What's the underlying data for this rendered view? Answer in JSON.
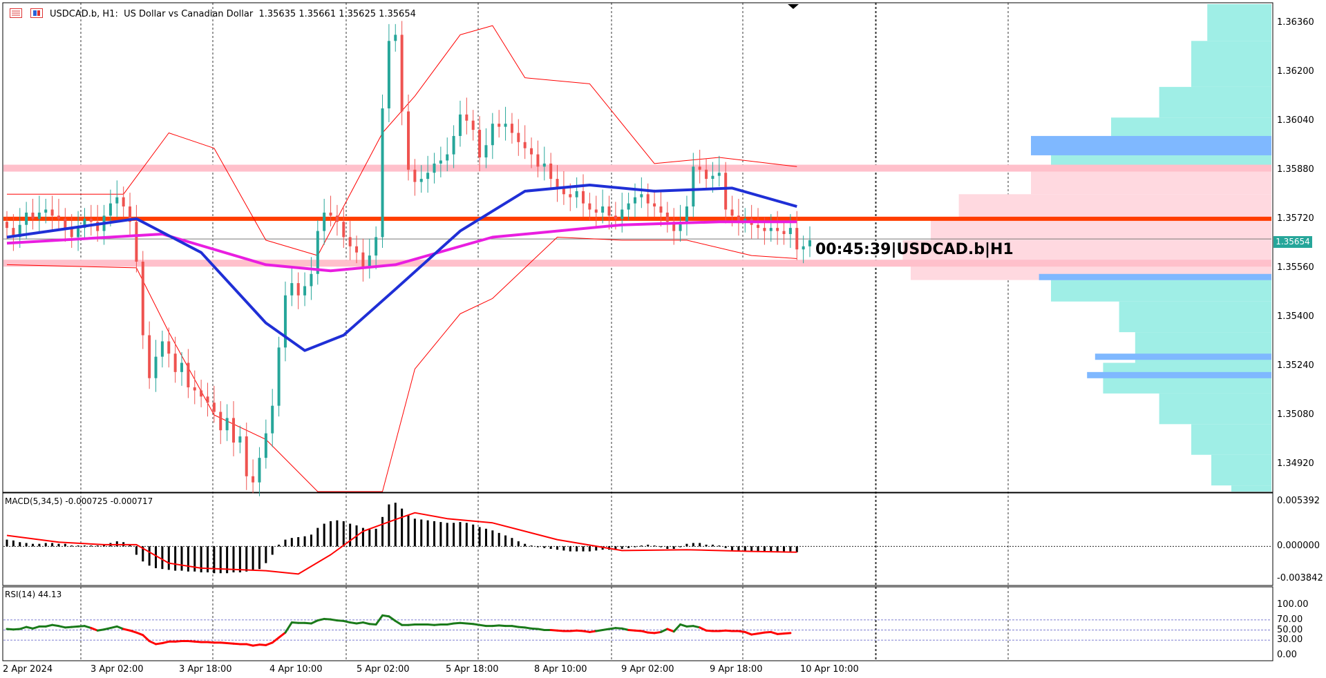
{
  "header": {
    "symbol_line": "USDCAD.b, H1:  US Dollar vs Canadian Dollar  1.35635 1.35661 1.35625 1.35654"
  },
  "countdown_label": "00:45:39|USDCAD.b|H1",
  "current_price": "1.35654",
  "colors": {
    "bull": "#26a69a",
    "bear": "#ef5350",
    "ma_fast": "#1f2fd6",
    "ma_slow": "#e91ee0",
    "resistance": "#ff3d00",
    "zone": "#ffc0cb",
    "bollinger": "#ff0000",
    "volume_profile": "#9feee6",
    "volume_profile_value_area": "#ffd9e0",
    "volume_profile_high": "#7fb8ff"
  },
  "chart_data": [
    {
      "type": "candlestick",
      "title": "USDCAD.b, H1",
      "ylim": [
        1.3483,
        1.3642
      ],
      "y_ticks": [
        "1.36360",
        "1.36200",
        "1.36040",
        "1.35880",
        "1.35720",
        "1.35560",
        "1.35400",
        "1.35240",
        "1.35080",
        "1.34920"
      ],
      "x_ticks": [
        "2 Apr 2024",
        "3 Apr 02:00",
        "3 Apr 18:00",
        "4 Apr 10:00",
        "5 Apr 02:00",
        "5 Apr 18:00",
        "8 Apr 10:00",
        "9 Apr 02:00",
        "9 Apr 18:00",
        "10 Apr 10:00"
      ],
      "close_path": [
        1.3569,
        1.3566,
        1.357,
        1.3574,
        1.3572,
        1.3574,
        1.3575,
        1.3573,
        1.3572,
        1.3569,
        1.3566,
        1.3569,
        1.3572,
        1.3571,
        1.3568,
        1.3573,
        1.3577,
        1.3579,
        1.3576,
        1.3571,
        1.3558,
        1.3534,
        1.352,
        1.3527,
        1.3532,
        1.3528,
        1.3522,
        1.3525,
        1.3517,
        1.3516,
        1.3514,
        1.3512,
        1.3509,
        1.3503,
        1.3507,
        1.3499,
        1.3501,
        1.3488,
        1.3486,
        1.3494,
        1.3502,
        1.3511,
        1.353,
        1.3547,
        1.3551,
        1.3547,
        1.355,
        1.3554,
        1.3568,
        1.3574,
        1.3573,
        1.3571,
        1.3566,
        1.3563,
        1.3561,
        1.3556,
        1.356,
        1.3566,
        1.3608,
        1.363,
        1.3632,
        1.3607,
        1.3588,
        1.3584,
        1.3585,
        1.3587,
        1.359,
        1.3591,
        1.3593,
        1.3599,
        1.3606,
        1.3604,
        1.3601,
        1.3592,
        1.3596,
        1.3603,
        1.3602,
        1.3603,
        1.36,
        1.3597,
        1.3595,
        1.3593,
        1.3589,
        1.359,
        1.3585,
        1.3582,
        1.358,
        1.3579,
        1.3581,
        1.3577,
        1.3575,
        1.3574,
        1.3576,
        1.3573,
        1.3572,
        1.3575,
        1.3577,
        1.3579,
        1.358,
        1.3577,
        1.3576,
        1.3574,
        1.3571,
        1.3568,
        1.3571,
        1.3576,
        1.3589,
        1.3588,
        1.3585,
        1.3586,
        1.3587,
        1.3575,
        1.3573,
        1.3571,
        1.3572,
        1.357,
        1.3569,
        1.3568,
        1.3569,
        1.3568,
        1.3567,
        1.3569,
        1.3562,
        1.3563,
        1.3565
      ],
      "resistance_level": 1.3572,
      "zones": [
        1.35885,
        1.35575
      ],
      "last_price_line": 1.35654,
      "ma_fast": [
        [
          0,
          1.3566
        ],
        [
          20,
          1.3572
        ],
        [
          30,
          1.3561
        ],
        [
          40,
          1.3538
        ],
        [
          46,
          1.3529
        ],
        [
          52,
          1.3534
        ],
        [
          60,
          1.3549
        ],
        [
          70,
          1.3568
        ],
        [
          80,
          1.3581
        ],
        [
          90,
          1.3583
        ],
        [
          100,
          1.3581
        ],
        [
          112,
          1.3582
        ],
        [
          122,
          1.3576
        ]
      ],
      "ma_slow": [
        [
          0,
          1.3564
        ],
        [
          24,
          1.3567
        ],
        [
          40,
          1.3557
        ],
        [
          50,
          1.3555
        ],
        [
          60,
          1.3557
        ],
        [
          75,
          1.3566
        ],
        [
          95,
          1.357
        ],
        [
          110,
          1.3571
        ],
        [
          122,
          1.3571
        ]
      ],
      "bollinger_upper": [
        [
          0,
          1.358
        ],
        [
          18,
          1.358
        ],
        [
          25,
          1.36
        ],
        [
          32,
          1.3595
        ],
        [
          40,
          1.3565
        ],
        [
          48,
          1.356
        ],
        [
          58,
          1.36
        ],
        [
          63,
          1.3612
        ],
        [
          70,
          1.3632
        ],
        [
          75,
          1.3635
        ],
        [
          80,
          1.3618
        ],
        [
          90,
          1.3616
        ],
        [
          100,
          1.359
        ],
        [
          110,
          1.3592
        ],
        [
          122,
          1.3589
        ]
      ],
      "bollinger_lower": [
        [
          0,
          1.3557
        ],
        [
          20,
          1.3556
        ],
        [
          25,
          1.3535
        ],
        [
          32,
          1.3508
        ],
        [
          40,
          1.35
        ],
        [
          48,
          1.3483
        ],
        [
          58,
          1.3483
        ],
        [
          63,
          1.3523
        ],
        [
          70,
          1.3541
        ],
        [
          75,
          1.3546
        ],
        [
          85,
          1.3566
        ],
        [
          95,
          1.3565
        ],
        [
          105,
          1.3565
        ],
        [
          115,
          1.356
        ],
        [
          122,
          1.3559
        ]
      ],
      "volume_profile": [
        [
          1.3642,
          0.16
        ],
        [
          1.363,
          0.2
        ],
        [
          1.3615,
          0.28
        ],
        [
          1.3605,
          0.4
        ],
        [
          1.3597,
          0.55
        ],
        [
          1.3588,
          0.6
        ],
        [
          1.358,
          0.78
        ],
        [
          1.3572,
          0.85
        ],
        [
          1.3565,
          0.92
        ],
        [
          1.3558,
          0.9
        ],
        [
          1.3552,
          0.55
        ],
        [
          1.3545,
          0.38
        ],
        [
          1.3535,
          0.34
        ],
        [
          1.3525,
          0.42
        ],
        [
          1.3515,
          0.28
        ],
        [
          1.3505,
          0.2
        ],
        [
          1.3495,
          0.15
        ],
        [
          1.3485,
          0.1
        ]
      ]
    },
    {
      "type": "bar",
      "title": "MACD(5,34,5) -0.000725 -0.000717",
      "y_ticks": [
        "0.005392",
        "0.000000",
        "-0.003842"
      ],
      "ylim": [
        -0.0045,
        0.0062
      ],
      "histogram": [
        0.0008,
        0.0007,
        0.0005,
        0.0004,
        0.0003,
        0.0003,
        0.0004,
        0.0004,
        0.0003,
        0.0003,
        0.0001,
        0.0001,
        0.0001,
        0.0001,
        0.0001,
        0.0002,
        0.0004,
        0.0006,
        0.0005,
        0.0002,
        -0.001,
        -0.0018,
        -0.0023,
        -0.0026,
        -0.0027,
        -0.0028,
        -0.0029,
        -0.0029,
        -0.003,
        -0.003,
        -0.0031,
        -0.0031,
        -0.0032,
        -0.0032,
        -0.0032,
        -0.0031,
        -0.0031,
        -0.003,
        -0.0029,
        -0.0027,
        -0.002,
        -0.001,
        0.0002,
        0.0008,
        0.001,
        0.0011,
        0.0012,
        0.0014,
        0.0022,
        0.0027,
        0.003,
        0.0031,
        0.003,
        0.0027,
        0.0025,
        0.0022,
        0.002,
        0.0021,
        0.0035,
        0.005,
        0.0052,
        0.0045,
        0.0037,
        0.0033,
        0.0032,
        0.0031,
        0.003,
        0.0029,
        0.0028,
        0.0028,
        0.0029,
        0.0028,
        0.0026,
        0.0023,
        0.0021,
        0.0019,
        0.0016,
        0.0013,
        0.001,
        0.0006,
        0.0003,
        0.0001,
        -0.0001,
        -0.0002,
        -0.0003,
        -0.0004,
        -0.0005,
        -0.0006,
        -0.0006,
        -0.0006,
        -0.0006,
        -0.0005,
        -0.0004,
        -0.0004,
        -0.0004,
        -0.0003,
        -0.0002,
        -0.0001,
        0.0001,
        0.0002,
        0.0001,
        -0.0001,
        -0.0003,
        -0.0003,
        -0.0001,
        0.0003,
        0.0004,
        0.0004,
        0.0002,
        0.0002,
        0.0001,
        -0.0002,
        -0.0005,
        -0.0006,
        -0.0006,
        -0.0006,
        -0.0006,
        -0.0006,
        -0.0006,
        -0.0006,
        -0.0006,
        -0.0006,
        -0.0007
      ],
      "signal": [
        [
          0,
          0.0013
        ],
        [
          8,
          0.0005
        ],
        [
          15,
          0.0002
        ],
        [
          20,
          0.0002
        ],
        [
          25,
          -0.002
        ],
        [
          30,
          -0.0026
        ],
        [
          40,
          -0.0029
        ],
        [
          45,
          -0.0033
        ],
        [
          50,
          -0.001
        ],
        [
          55,
          0.0018
        ],
        [
          60,
          0.0032
        ],
        [
          63,
          0.004
        ],
        [
          68,
          0.0033
        ],
        [
          75,
          0.0028
        ],
        [
          85,
          0.0008
        ],
        [
          95,
          -0.0005
        ],
        [
          105,
          -0.0004
        ],
        [
          115,
          -0.0006
        ],
        [
          122,
          -0.0007
        ]
      ]
    },
    {
      "type": "line",
      "title": "RSI(14) 44.13",
      "y_ticks": [
        "100.00",
        "70.00",
        "50.00",
        "30.00",
        "0.00"
      ],
      "ylim": [
        0,
        100
      ],
      "levels": [
        70,
        50,
        30
      ],
      "values": [
        52,
        51,
        52,
        56,
        53,
        57,
        57,
        60,
        58,
        55,
        56,
        57,
        58,
        54,
        49,
        51,
        54,
        57,
        52,
        49,
        45,
        40,
        28,
        22,
        24,
        27,
        27,
        28,
        28,
        27,
        26,
        26,
        25,
        25,
        24,
        23,
        22,
        22,
        19,
        21,
        20,
        25,
        35,
        45,
        65,
        64,
        64,
        63,
        69,
        72,
        71,
        69,
        68,
        65,
        63,
        65,
        62,
        61,
        79,
        77,
        68,
        60,
        60,
        61,
        61,
        61,
        60,
        61,
        61,
        63,
        64,
        63,
        62,
        60,
        58,
        58,
        59,
        58,
        58,
        56,
        55,
        53,
        52,
        50,
        50,
        49,
        48,
        48,
        49,
        48,
        46,
        48,
        50,
        52,
        54,
        53,
        50,
        49,
        48,
        45,
        44,
        46,
        52,
        47,
        61,
        57,
        58,
        55,
        49,
        48,
        48,
        49,
        48,
        48,
        46,
        41,
        43,
        45,
        46,
        42,
        43,
        44
      ],
      "bull_color": "#1a7a1a",
      "bear_color": "#ff0000"
    }
  ]
}
